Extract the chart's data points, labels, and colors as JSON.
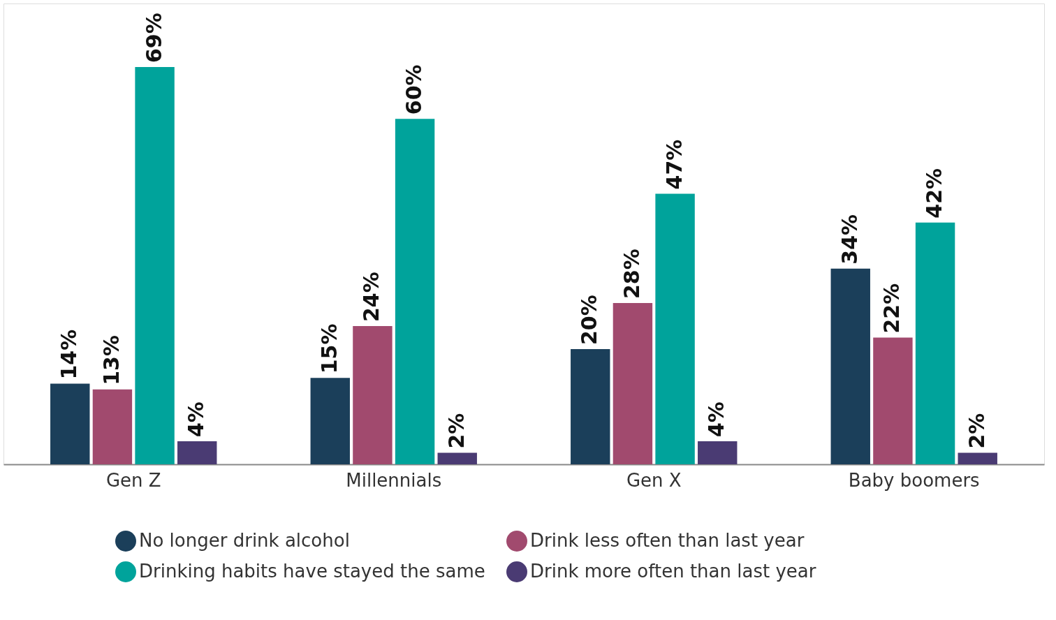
{
  "chart_data": {
    "type": "bar",
    "categories": [
      "Gen Z",
      "Millennials",
      "Gen X",
      "Baby boomers"
    ],
    "series": [
      {
        "name": "No longer drink alcohol",
        "color": "#1b3f5a",
        "values": [
          14,
          15,
          20,
          34
        ],
        "value_labels": [
          "14%",
          "15%",
          "20%",
          "34%"
        ]
      },
      {
        "name": "Drink less often than last year",
        "color": "#a14a6e",
        "values": [
          13,
          24,
          28,
          22
        ],
        "value_labels": [
          "13%",
          "24%",
          "28%",
          "22%"
        ]
      },
      {
        "name": "Drinking habits have stayed the same",
        "color": "#00a39b",
        "values": [
          69,
          60,
          47,
          42
        ],
        "value_labels": [
          "69%",
          "60%",
          "47%",
          "42%"
        ]
      },
      {
        "name": "Drink more often than last year",
        "color": "#4a3b73",
        "values": [
          4,
          2,
          4,
          2
        ],
        "value_labels": [
          "4%",
          "2%",
          "4%",
          "2%"
        ]
      }
    ],
    "legend": "bottom",
    "grid": false,
    "tick_labels": "x"
  }
}
